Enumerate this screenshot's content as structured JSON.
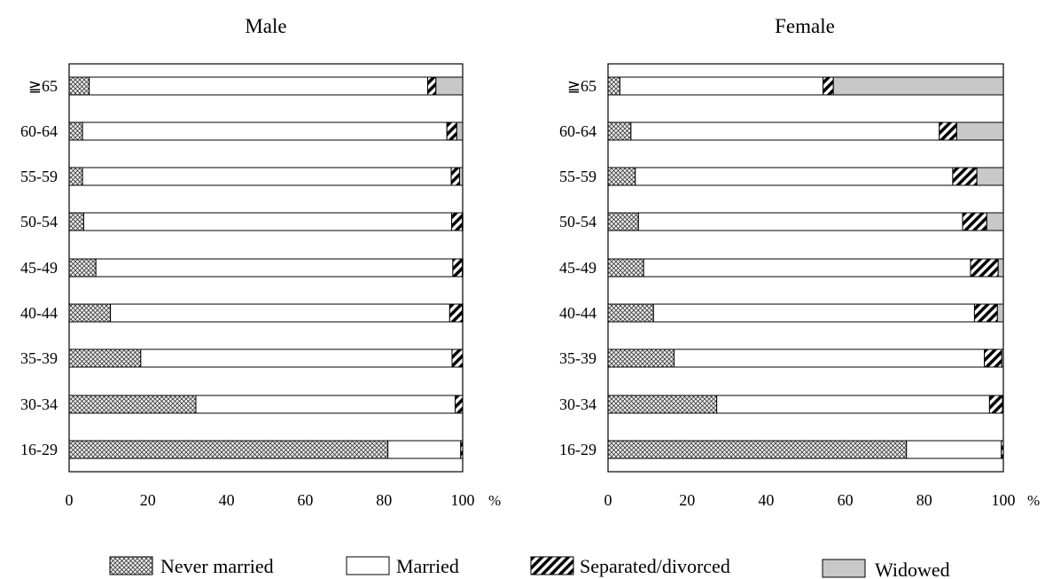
{
  "chart_data": [
    {
      "type": "bar",
      "orientation": "horizontal",
      "stacked": true,
      "title": "Male",
      "xlabel": "",
      "x_unit": "%",
      "ylabel": "",
      "xlim": [
        0,
        100
      ],
      "xticks": [
        "0",
        "20",
        "40",
        "60",
        "80",
        "100"
      ],
      "grid": false,
      "categories": [
        "≧65",
        "60-64",
        "55-59",
        "50-54",
        "45-49",
        "40-44",
        "35-39",
        "30-34",
        "16-29"
      ],
      "series": [
        {
          "name": "Never married",
          "values": [
            5.1,
            3.4,
            3.4,
            3.7,
            6.8,
            10.5,
            18.2,
            32.2,
            81.0
          ]
        },
        {
          "name": "Married",
          "values": [
            86.0,
            92.6,
            93.7,
            93.5,
            90.7,
            86.2,
            79.1,
            65.9,
            18.5
          ]
        },
        {
          "name": "Separated/divorced",
          "values": [
            2.1,
            2.5,
            2.1,
            2.7,
            2.4,
            3.2,
            2.7,
            1.9,
            0.5
          ]
        },
        {
          "name": "Widowed",
          "values": [
            6.8,
            1.5,
            0.8,
            0.1,
            0.1,
            0.1,
            0.0,
            0.0,
            0.0
          ]
        }
      ]
    },
    {
      "type": "bar",
      "orientation": "horizontal",
      "stacked": true,
      "title": "Female",
      "xlabel": "",
      "x_unit": "%",
      "ylabel": "",
      "xlim": [
        0,
        100
      ],
      "xticks": [
        "0",
        "20",
        "40",
        "60",
        "80",
        "100"
      ],
      "grid": false,
      "categories": [
        "≧65",
        "60-64",
        "55-59",
        "50-54",
        "45-49",
        "40-44",
        "35-39",
        "30-34",
        "16-29"
      ],
      "series": [
        {
          "name": "Never married",
          "values": [
            3.0,
            5.8,
            6.9,
            7.7,
            9.0,
            11.5,
            16.7,
            27.5,
            75.5
          ]
        },
        {
          "name": "Married",
          "values": [
            51.4,
            78.0,
            80.3,
            82.0,
            82.7,
            81.2,
            78.5,
            69.0,
            24.0
          ]
        },
        {
          "name": "Separated/divorced",
          "values": [
            2.6,
            4.4,
            6.1,
            6.1,
            7.0,
            5.8,
            4.4,
            3.3,
            0.5
          ]
        },
        {
          "name": "Widowed",
          "values": [
            43.0,
            11.8,
            6.7,
            4.2,
            1.3,
            1.5,
            0.4,
            0.2,
            0.0
          ]
        }
      ]
    }
  ],
  "legend": {
    "placement": "bottom",
    "items": [
      {
        "name": "Never married",
        "pattern": "crosshatch"
      },
      {
        "name": "Married",
        "pattern": "white"
      },
      {
        "name": "Separated/divorced",
        "pattern": "diagonal-stripes"
      },
      {
        "name": "Widowed",
        "pattern": "gray"
      }
    ]
  },
  "colors": {
    "married_fill": "#ffffff",
    "widowed_fill": "#c8c8c8",
    "stripe": "#000000",
    "crosshatch_bg": "#ececec",
    "outline": "#000000"
  }
}
